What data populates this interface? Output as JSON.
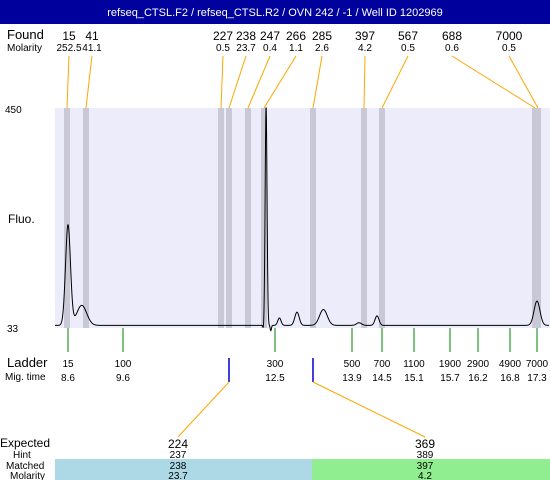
{
  "title": "refseq_CTSL.F2 / refseq_CTSL.R2 / OVN 242 / -1 / Well ID 1202969",
  "colors": {
    "title_bar": "#00009c",
    "plot_bg": "#ececfa",
    "band": "#c8c8d6",
    "orange_line": "#ffa500",
    "green_line": "#008000",
    "blue_mark": "#0000cc",
    "matched_blue": "#add8e6",
    "matched_green": "#90ee90"
  },
  "labels": {
    "found": "Found",
    "molarity": "Molarity",
    "fluo": "Fluo.",
    "ladder": "Ladder",
    "mig_time": "Mig. time",
    "expected": "Expected",
    "hint": "Hint",
    "matched": "Matched",
    "molarity_bottom": "Molarity"
  },
  "chart_data": {
    "type": "line",
    "ylim": [
      33,
      450
    ],
    "yticks": [
      "450",
      "33"
    ],
    "found_peaks": [
      {
        "size": "15",
        "molarity": "252.5"
      },
      {
        "size": "41",
        "molarity": "41.1"
      },
      {
        "size": "227",
        "molarity": "0.5"
      },
      {
        "size": "238",
        "molarity": "23.7"
      },
      {
        "size": "247",
        "molarity": "0.4"
      },
      {
        "size": "266",
        "molarity": "1.1"
      },
      {
        "size": "285",
        "molarity": "2.6"
      },
      {
        "size": "397",
        "molarity": "4.2"
      },
      {
        "size": "567",
        "molarity": "0.5"
      },
      {
        "size": "688",
        "molarity": "0.6"
      },
      {
        "size": "7000",
        "molarity": "0.5"
      }
    ],
    "ladder": [
      {
        "size": "15",
        "time": "8.6"
      },
      {
        "size": "100",
        "time": "9.6"
      },
      {
        "size": "300",
        "time": "12.5"
      },
      {
        "size": "500",
        "time": "13.9"
      },
      {
        "size": "700",
        "time": "14.5"
      },
      {
        "size": "1100",
        "time": "15.1"
      },
      {
        "size": "1900",
        "time": "15.7"
      },
      {
        "size": "2900",
        "time": "16.2"
      },
      {
        "size": "4900",
        "time": "16.8"
      },
      {
        "size": "7000",
        "time": "17.3"
      }
    ],
    "expected": [
      {
        "expected": "224",
        "hint": "237",
        "matched": "238",
        "molarity": "23.7"
      },
      {
        "expected": "369",
        "hint": "389",
        "matched": "397",
        "molarity": "4.2"
      }
    ],
    "trace_peaks": [
      {
        "time": 8.6,
        "height": 190
      },
      {
        "time": 8.85,
        "height": 38
      },
      {
        "time": 12.33,
        "height": 416
      },
      {
        "time": 12.28,
        "height": -8
      },
      {
        "time": 12.42,
        "height": -10
      },
      {
        "time": 12.58,
        "height": 14
      },
      {
        "time": 12.9,
        "height": 25
      },
      {
        "time": 13.38,
        "height": 30
      },
      {
        "time": 14.04,
        "height": 5
      },
      {
        "time": 14.4,
        "height": 18
      },
      {
        "time": 17.3,
        "height": 46
      }
    ]
  }
}
